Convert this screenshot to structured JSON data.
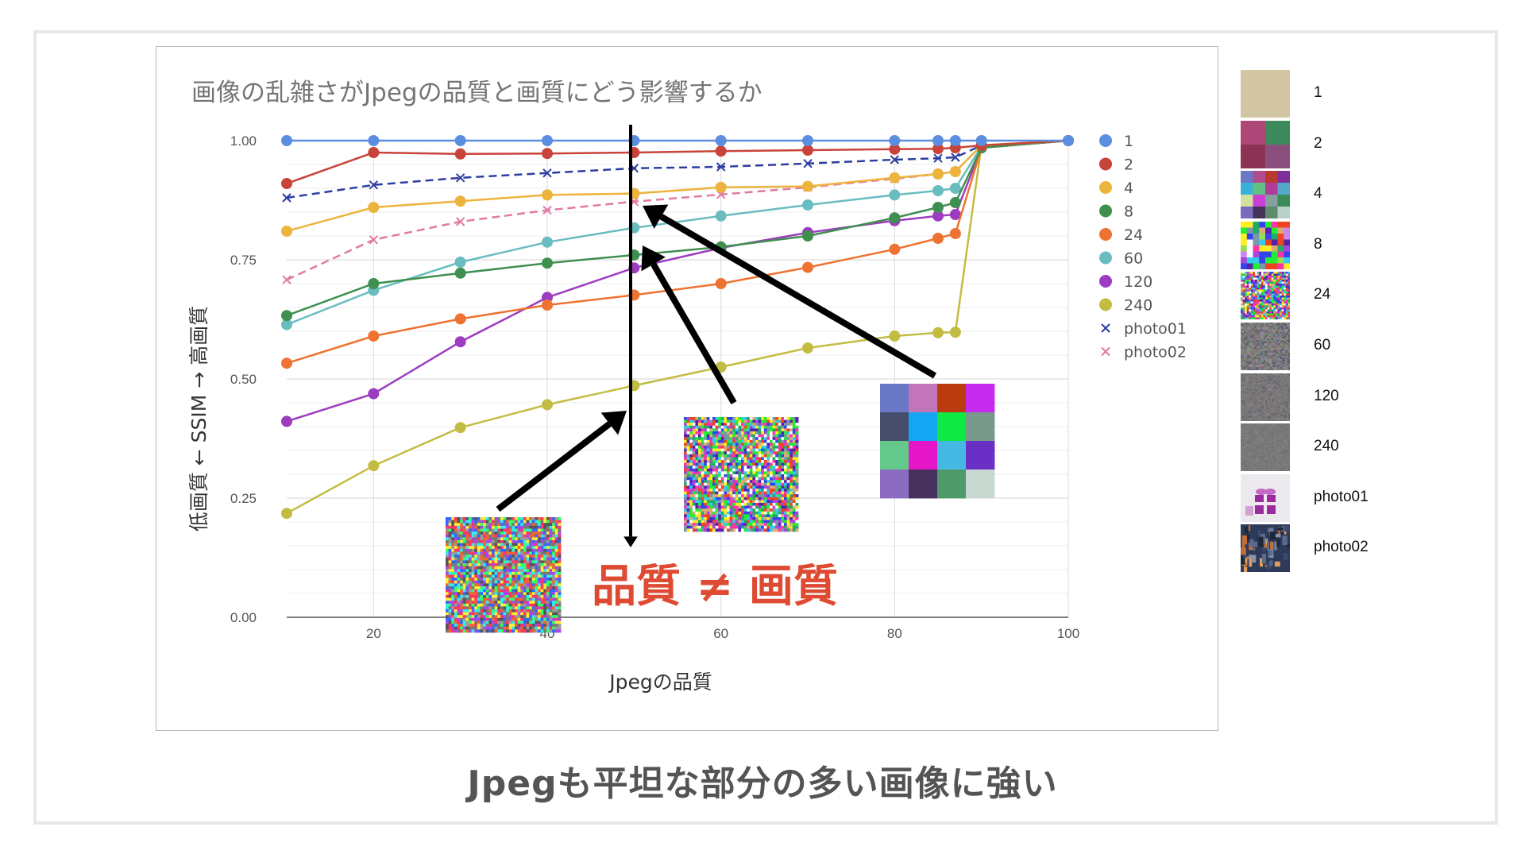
{
  "caption": "Jpegも平坦な部分の多い画像に強い",
  "annotation": "品質 ≠ 画質",
  "colors": {
    "s1": "#5b8ee0",
    "s2": "#c8433a",
    "s4": "#ecb43c",
    "s8": "#3f8f4f",
    "s24": "#ee7332",
    "s60": "#69bcc0",
    "s120": "#9d3cc0",
    "s240": "#c2bd42",
    "photo01": "#2c3ea0",
    "photo02": "#e07aa4",
    "annotation": "#de4a32"
  },
  "chart_data": {
    "type": "line",
    "title": "画像の乱雑さがJpegの品質と画質にどう影響するか",
    "xlabel": "Jpegの品質",
    "ylabel": "低画質 ← SSIM → 高画質",
    "xlim": [
      10,
      100
    ],
    "ylim": [
      0,
      1
    ],
    "x_ticks": [
      "20",
      "40",
      "60",
      "80",
      "100"
    ],
    "y_ticks": [
      "0.00",
      "0.25",
      "0.50",
      "0.75",
      "1.00"
    ],
    "grid": true,
    "legend_position": "right",
    "x": [
      10,
      20,
      30,
      40,
      50,
      60,
      70,
      80,
      85,
      87,
      90,
      100
    ],
    "series": [
      {
        "name": "1",
        "marker": "circle",
        "dash": false,
        "color_key": "s1",
        "values": [
          1.0,
          1.0,
          1.0,
          1.0,
          1.0,
          1.0,
          1.0,
          1.0,
          1.0,
          1.0,
          1.0,
          1.0
        ]
      },
      {
        "name": "2",
        "marker": "circle",
        "dash": false,
        "color_key": "s2",
        "values": [
          0.91,
          0.975,
          0.972,
          0.973,
          0.975,
          0.978,
          0.98,
          0.982,
          0.983,
          0.985,
          0.99,
          1.0
        ]
      },
      {
        "name": "4",
        "marker": "circle",
        "dash": false,
        "color_key": "s4",
        "values": [
          0.81,
          0.86,
          0.873,
          0.886,
          0.889,
          0.902,
          0.904,
          0.922,
          0.93,
          0.935,
          0.99,
          1.0
        ]
      },
      {
        "name": "8",
        "marker": "circle",
        "dash": false,
        "color_key": "s8",
        "values": [
          0.633,
          0.7,
          0.722,
          0.743,
          0.76,
          0.777,
          0.8,
          0.838,
          0.86,
          0.87,
          0.985,
          1.0
        ]
      },
      {
        "name": "24",
        "marker": "circle",
        "dash": false,
        "color_key": "s24",
        "values": [
          0.533,
          0.59,
          0.626,
          0.655,
          0.676,
          0.7,
          0.734,
          0.772,
          0.795,
          0.805,
          0.985,
          1.0
        ]
      },
      {
        "name": "60",
        "marker": "circle",
        "dash": false,
        "color_key": "s60",
        "values": [
          0.614,
          0.686,
          0.745,
          0.787,
          0.817,
          0.842,
          0.865,
          0.886,
          0.895,
          0.9,
          0.988,
          1.0
        ]
      },
      {
        "name": "120",
        "marker": "circle",
        "dash": false,
        "color_key": "s120",
        "values": [
          0.411,
          0.469,
          0.578,
          0.671,
          0.733,
          0.775,
          0.807,
          0.832,
          0.842,
          0.845,
          0.985,
          1.0
        ]
      },
      {
        "name": "240",
        "marker": "circle",
        "dash": false,
        "color_key": "s240",
        "values": [
          0.218,
          0.318,
          0.398,
          0.446,
          0.486,
          0.525,
          0.565,
          0.59,
          0.597,
          0.598,
          0.99,
          1.0
        ]
      },
      {
        "name": "photo01",
        "marker": "x",
        "dash": true,
        "color_key": "photo01",
        "values": [
          0.88,
          0.907,
          0.922,
          0.932,
          0.942,
          0.945,
          0.952,
          0.96,
          0.963,
          0.965,
          0.99,
          1.0
        ]
      },
      {
        "name": "photo02",
        "marker": "x",
        "dash": true,
        "color_key": "photo02",
        "values": [
          0.708,
          0.792,
          0.83,
          0.854,
          0.872,
          0.887,
          0.902,
          0.92,
          0.93,
          0.935,
          0.99,
          1.0
        ]
      }
    ]
  },
  "thumbnails": [
    {
      "label": "1",
      "grid": 1,
      "colors": [
        "#d3c6a2"
      ]
    },
    {
      "label": "2",
      "grid": 2,
      "colors": [
        "#ad4777",
        "#3e8a5a",
        "#8c3356",
        "#8b4f7e"
      ]
    },
    {
      "label": "4",
      "grid": 4,
      "colors": [
        "#6a78c6",
        "#b24a8e",
        "#b93a2e",
        "#7d2f9c",
        "#39b1d6",
        "#62c083",
        "#b13b9b",
        "#53a9c6",
        "#d1e1a0",
        "#ca3fd4",
        "#86a0a0",
        "#3b8b58",
        "#7a6bbd",
        "#43325a",
        "#5f8a6e",
        "#b8d2c8"
      ]
    },
    {
      "label": "8",
      "grid": 8,
      "palette": [
        "#22ee33",
        "#ff33aa",
        "#3344ee",
        "#ffee22",
        "#aa44dd",
        "#33ccee",
        "#ee4422",
        "#7799aa",
        "#ddaa77",
        "#22aa66",
        "#ffffff",
        "#5522aa",
        "#cc88ee",
        "#99dd55"
      ]
    },
    {
      "label": "24",
      "grid": 24,
      "palette": [
        "#22ee33",
        "#ff33aa",
        "#3344ee",
        "#ffee22",
        "#aa44dd",
        "#33ccee",
        "#ee4422",
        "#7799aa",
        "#ddaa77",
        "#22aa66",
        "#ffffff",
        "#5522aa"
      ]
    },
    {
      "label": "60",
      "grid": 30,
      "palette": [
        "#7a6f85",
        "#6f8577",
        "#857a6f",
        "#6f7a85",
        "#95859a",
        "#5a6070",
        "#8a9080",
        "#706560"
      ]
    },
    {
      "label": "120",
      "grid": 30,
      "palette": [
        "#77737a",
        "#7a7773",
        "#73777a",
        "#858085",
        "#6a686e",
        "#807a77"
      ]
    },
    {
      "label": "240",
      "grid": 30,
      "palette": [
        "#7a7878",
        "#787a7a",
        "#777777",
        "#808080",
        "#727272"
      ]
    },
    {
      "label": "photo01",
      "kind": "photo01"
    },
    {
      "label": "photo02",
      "kind": "photo02"
    }
  ],
  "overlays": [
    {
      "name": "overlay-noise-240",
      "grid": 40,
      "palette": [
        "#ff3366",
        "#33ff66",
        "#3366ff",
        "#ffee33",
        "#aa44ee",
        "#33eeee",
        "#777777",
        "#555555",
        "#999999",
        "#ee6633"
      ]
    },
    {
      "name": "overlay-noise-24",
      "grid": 40,
      "palette": [
        "#22ee33",
        "#ff33aa",
        "#3344ee",
        "#ffee22",
        "#aa44dd",
        "#33ccee",
        "#ee4422",
        "#7799aa",
        "#ddaa77",
        "#22aa66",
        "#ffffff",
        "#5522aa"
      ]
    },
    {
      "name": "overlay-grid-4",
      "grid": 4,
      "colors": [
        "#6a78c6",
        "#c275b8",
        "#bb3b10",
        "#c62bf0",
        "#464e6c",
        "#14a6f2",
        "#10e844",
        "#789a8c",
        "#63c88a",
        "#e416c8",
        "#45b8e4",
        "#6a30c6",
        "#8c6cc2",
        "#46305c",
        "#4f9a6a",
        "#c8d8d0"
      ]
    }
  ]
}
